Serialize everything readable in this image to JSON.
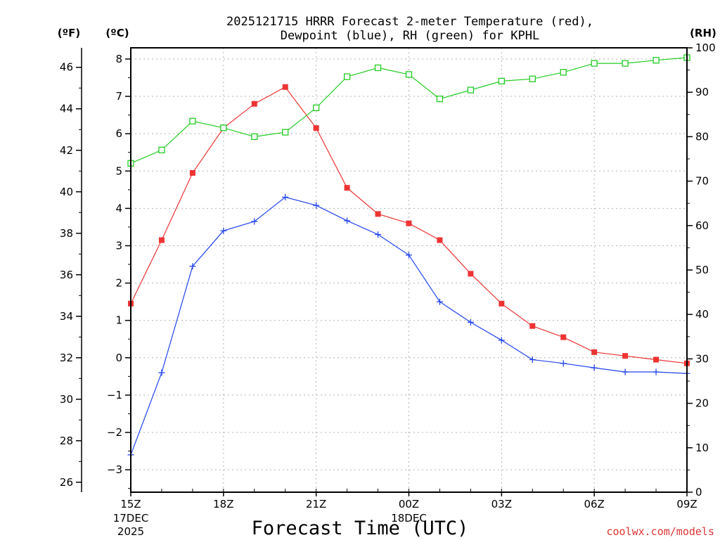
{
  "chart_data": {
    "type": "line",
    "title_line1": "2025121715 HRRR Forecast 2-meter Temperature (red),",
    "title_line2": "Dewpoint (blue), RH (green) for KPHL",
    "xlabel": "Forecast Time (UTC)",
    "watermark": "coolwx.com/models",
    "unit_f": "(ºF)",
    "unit_c": "(ºC)",
    "unit_rh": "(RH)",
    "x_hours": [
      15,
      16,
      17,
      18,
      19,
      20,
      21,
      22,
      23,
      24,
      25,
      26,
      27,
      28,
      29,
      30,
      31,
      32,
      33
    ],
    "x_ticks": [
      {
        "hour": 15,
        "label": "15Z",
        "date1": "17DEC",
        "date2": "2025"
      },
      {
        "hour": 18,
        "label": "18Z"
      },
      {
        "hour": 21,
        "label": "21Z"
      },
      {
        "hour": 24,
        "label": "00Z",
        "date1": "18DEC"
      },
      {
        "hour": 27,
        "label": "03Z"
      },
      {
        "hour": 30,
        "label": "06Z"
      },
      {
        "hour": 33,
        "label": "09Z"
      }
    ],
    "left_c_axis": {
      "min": -3.6,
      "max": 8.3,
      "ticks": [
        -3,
        -2,
        -1,
        0,
        1,
        2,
        3,
        4,
        5,
        6,
        7,
        8
      ]
    },
    "left_f_ticks": [
      26,
      28,
      30,
      32,
      34,
      36,
      38,
      40,
      42,
      44,
      46
    ],
    "right_rh_axis": {
      "min": 0,
      "max": 100,
      "ticks": [
        0,
        10,
        20,
        30,
        40,
        50,
        60,
        70,
        80,
        90,
        100
      ]
    },
    "series": [
      {
        "name": "Temperature",
        "color": "#ee3333",
        "marker": "filled-square",
        "axis": "c",
        "values": [
          1.45,
          3.15,
          4.95,
          6.15,
          6.8,
          7.25,
          6.15,
          4.55,
          3.85,
          3.6,
          3.15,
          2.25,
          1.45,
          0.85,
          0.55,
          0.15,
          0.05,
          -0.05,
          -0.15
        ]
      },
      {
        "name": "Dewpoint",
        "color": "#2244ee",
        "marker": "plus",
        "axis": "c",
        "values": [
          -2.6,
          -0.4,
          2.45,
          3.4,
          3.65,
          4.3,
          4.08,
          3.67,
          3.3,
          2.75,
          1.5,
          0.95,
          0.47,
          -0.05,
          -0.15,
          -0.27,
          -0.38,
          -0.38,
          -0.42
        ]
      },
      {
        "name": "RH",
        "color": "#22cc22",
        "marker": "open-square",
        "axis": "rh",
        "values": [
          74,
          77,
          83.5,
          82,
          80,
          81,
          86.5,
          93.5,
          95.5,
          94,
          88.5,
          90.5,
          92.5,
          93,
          94.5,
          96.5,
          96.5,
          97.2,
          97.8
        ]
      }
    ]
  }
}
